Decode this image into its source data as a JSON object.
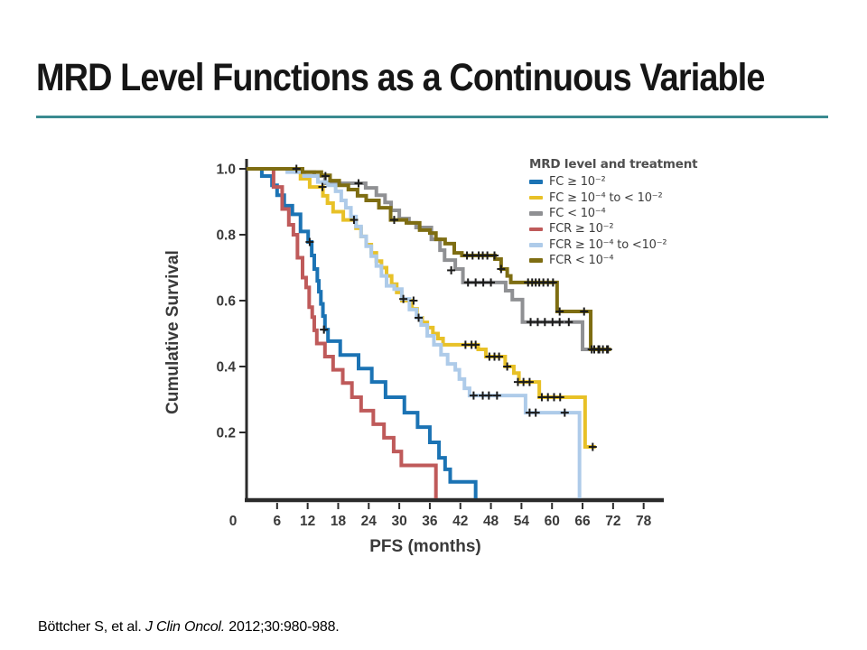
{
  "slide": {
    "title": "MRD Level Functions as a Continuous Variable",
    "accent_color": "#3b8b90",
    "citation": {
      "pre": "Böttcher S, et al. ",
      "italic": "J Clin Oncol.",
      "post": " 2012;30:980-988."
    }
  },
  "chart_data": {
    "type": "line",
    "subtype": "kaplan-meier-step",
    "title": "",
    "xlabel": "PFS (months)",
    "ylabel": "Cumulative Survival",
    "xlim": [
      0,
      80
    ],
    "ylim": [
      0,
      1.0
    ],
    "xticks": [
      0,
      6,
      12,
      18,
      24,
      30,
      36,
      42,
      48,
      54,
      60,
      66,
      72,
      78
    ],
    "yticks": [
      0.2,
      0.4,
      0.6,
      0.8,
      1.0
    ],
    "grid": false,
    "axis_color": "#2b2b2b",
    "censor_color": "#1b1b1b",
    "legend": {
      "title": "MRD level and treatment",
      "position": "top-right"
    },
    "series": [
      {
        "label": "FC ≥ 10⁻²",
        "color": "#1b73b4",
        "steps": [
          [
            3,
            0.978
          ],
          [
            5,
            0.95
          ],
          [
            6,
            0.92
          ],
          [
            7.4,
            0.888
          ],
          [
            9,
            0.862
          ],
          [
            10.6,
            0.81
          ],
          [
            12.1,
            0.778
          ],
          [
            12.8,
            0.737
          ],
          [
            13.3,
            0.696
          ],
          [
            13.9,
            0.66
          ],
          [
            14.2,
            0.627
          ],
          [
            14.6,
            0.59
          ],
          [
            15,
            0.553
          ],
          [
            15.4,
            0.512
          ],
          [
            16,
            0.477
          ],
          [
            18.4,
            0.435
          ],
          [
            22,
            0.394
          ],
          [
            24.6,
            0.353
          ],
          [
            27.3,
            0.307
          ],
          [
            31,
            0.26
          ],
          [
            33.6,
            0.216
          ],
          [
            36,
            0.17
          ],
          [
            37.8,
            0.123
          ],
          [
            39,
            0.088
          ],
          [
            40,
            0.05
          ],
          [
            45,
            0
          ]
        ],
        "end": 45,
        "censors": [
          [
            12.4,
            0.778
          ],
          [
            15.2,
            0.512
          ]
        ]
      },
      {
        "label": "FC ≥ 10⁻⁴ to < 10⁻²",
        "color": "#e8c127",
        "steps": [
          [
            10.6,
            0.97
          ],
          [
            12.4,
            0.945
          ],
          [
            15,
            0.918
          ],
          [
            15.9,
            0.896
          ],
          [
            17,
            0.87
          ],
          [
            19,
            0.845
          ],
          [
            21.5,
            0.82
          ],
          [
            22.5,
            0.795
          ],
          [
            23.5,
            0.77
          ],
          [
            24.5,
            0.745
          ],
          [
            25.5,
            0.72
          ],
          [
            26.5,
            0.7
          ],
          [
            27.5,
            0.675
          ],
          [
            28.5,
            0.65
          ],
          [
            29.5,
            0.625
          ],
          [
            30.5,
            0.6
          ],
          [
            32.5,
            0.575
          ],
          [
            33.5,
            0.548
          ],
          [
            34.5,
            0.534
          ],
          [
            35.5,
            0.518
          ],
          [
            36.6,
            0.5
          ],
          [
            37.6,
            0.485
          ],
          [
            38.6,
            0.466
          ],
          [
            45.5,
            0.452
          ],
          [
            47,
            0.43
          ],
          [
            50.8,
            0.4
          ],
          [
            52.5,
            0.38
          ],
          [
            53.5,
            0.353
          ],
          [
            57.5,
            0.307
          ],
          [
            66.5,
            0.156
          ]
        ],
        "end": 68.6,
        "censors": [
          [
            14.9,
            0.945
          ],
          [
            21.1,
            0.845
          ],
          [
            32.8,
            0.6
          ],
          [
            43,
            0.466
          ],
          [
            44.2,
            0.466
          ],
          [
            45,
            0.466
          ],
          [
            47.7,
            0.43
          ],
          [
            48.7,
            0.43
          ],
          [
            49.6,
            0.43
          ],
          [
            51.2,
            0.4
          ],
          [
            53.3,
            0.353
          ],
          [
            54.4,
            0.353
          ],
          [
            55.6,
            0.353
          ],
          [
            58,
            0.307
          ],
          [
            59.2,
            0.307
          ],
          [
            60.4,
            0.307
          ],
          [
            61.6,
            0.307
          ],
          [
            68,
            0.156
          ]
        ]
      },
      {
        "label": "FC < 10⁻⁴",
        "color": "#8f9093",
        "steps": [
          [
            9.7,
            0.99
          ],
          [
            13.3,
            0.978
          ],
          [
            15.4,
            0.956
          ],
          [
            23.4,
            0.942
          ],
          [
            25.5,
            0.92
          ],
          [
            27.2,
            0.898
          ],
          [
            28.4,
            0.874
          ],
          [
            30,
            0.849
          ],
          [
            31.9,
            0.836
          ],
          [
            33.3,
            0.822
          ],
          [
            36.3,
            0.786
          ],
          [
            38,
            0.753
          ],
          [
            38.9,
            0.723
          ],
          [
            41,
            0.696
          ],
          [
            42.5,
            0.655
          ],
          [
            50.9,
            0.63
          ],
          [
            52.2,
            0.603
          ],
          [
            54.2,
            0.535
          ],
          [
            66,
            0.452
          ]
        ],
        "end": 71.6,
        "censors": [
          [
            9.8,
            1.0
          ],
          [
            22,
            0.956
          ],
          [
            40.2,
            0.692
          ],
          [
            43.5,
            0.655
          ],
          [
            45,
            0.655
          ],
          [
            46.5,
            0.655
          ],
          [
            48,
            0.655
          ],
          [
            55.8,
            0.535
          ],
          [
            57.2,
            0.535
          ],
          [
            58.6,
            0.535
          ],
          [
            60.1,
            0.535
          ],
          [
            61.5,
            0.535
          ],
          [
            63.3,
            0.535
          ],
          [
            67.8,
            0.452
          ],
          [
            69.3,
            0.452
          ],
          [
            70.8,
            0.452
          ]
        ]
      },
      {
        "label": "FCR ≥ 10⁻²",
        "color": "#bf5a5a",
        "steps": [
          [
            5.3,
            0.945
          ],
          [
            7,
            0.878
          ],
          [
            8.3,
            0.83
          ],
          [
            9.2,
            0.8
          ],
          [
            10,
            0.73
          ],
          [
            11,
            0.67
          ],
          [
            11.7,
            0.64
          ],
          [
            12.3,
            0.58
          ],
          [
            12.9,
            0.55
          ],
          [
            13.3,
            0.51
          ],
          [
            13.8,
            0.47
          ],
          [
            15.4,
            0.43
          ],
          [
            17,
            0.39
          ],
          [
            18.9,
            0.35
          ],
          [
            20.7,
            0.307
          ],
          [
            22.5,
            0.266
          ],
          [
            24.9,
            0.225
          ],
          [
            27,
            0.184
          ],
          [
            28.9,
            0.142
          ],
          [
            30.4,
            0.1
          ],
          [
            37.2,
            0
          ]
        ],
        "end": 37.2,
        "censors": []
      },
      {
        "label": "FCR ≥ 10⁻⁴ to <10⁻²",
        "color": "#aecbe9",
        "steps": [
          [
            8,
            0.99
          ],
          [
            11.3,
            0.978
          ],
          [
            14,
            0.96
          ],
          [
            16,
            0.95
          ],
          [
            17.5,
            0.932
          ],
          [
            18.6,
            0.904
          ],
          [
            19.5,
            0.882
          ],
          [
            20.5,
            0.855
          ],
          [
            21.5,
            0.825
          ],
          [
            22.5,
            0.795
          ],
          [
            23.5,
            0.765
          ],
          [
            24.5,
            0.735
          ],
          [
            25.5,
            0.705
          ],
          [
            26.5,
            0.675
          ],
          [
            27.5,
            0.645
          ],
          [
            29,
            0.635
          ],
          [
            30.5,
            0.605
          ],
          [
            32,
            0.573
          ],
          [
            33.4,
            0.548
          ],
          [
            34.3,
            0.526
          ],
          [
            35.5,
            0.493
          ],
          [
            36.8,
            0.466
          ],
          [
            38.2,
            0.436
          ],
          [
            39.5,
            0.408
          ],
          [
            41,
            0.39
          ],
          [
            41.8,
            0.362
          ],
          [
            42.8,
            0.334
          ],
          [
            43.8,
            0.312
          ],
          [
            54.8,
            0.26
          ],
          [
            65.4,
            0
          ]
        ],
        "end": 65.4,
        "censors": [
          [
            15.5,
            0.978
          ],
          [
            30.8,
            0.605
          ],
          [
            33.8,
            0.548
          ],
          [
            44.6,
            0.312
          ],
          [
            46.4,
            0.312
          ],
          [
            47.6,
            0.312
          ],
          [
            49.2,
            0.312
          ],
          [
            55.6,
            0.26
          ],
          [
            56.8,
            0.26
          ],
          [
            62.5,
            0.26
          ]
        ]
      },
      {
        "label": "FCR < 10⁻⁴",
        "color": "#7e6d12",
        "steps": [
          [
            11,
            0.99
          ],
          [
            14.7,
            0.98
          ],
          [
            16.4,
            0.964
          ],
          [
            18.2,
            0.95
          ],
          [
            20,
            0.937
          ],
          [
            21.8,
            0.918
          ],
          [
            23.5,
            0.904
          ],
          [
            26,
            0.882
          ],
          [
            28.3,
            0.845
          ],
          [
            31.4,
            0.836
          ],
          [
            34,
            0.814
          ],
          [
            36,
            0.805
          ],
          [
            37.2,
            0.786
          ],
          [
            39,
            0.773
          ],
          [
            40.8,
            0.745
          ],
          [
            42.3,
            0.737
          ],
          [
            48.8,
            0.726
          ],
          [
            50,
            0.696
          ],
          [
            51.2,
            0.675
          ],
          [
            51.9,
            0.655
          ],
          [
            61,
            0.567
          ],
          [
            67.6,
            0.452
          ]
        ],
        "end": 71.6,
        "censors": [
          [
            29,
            0.845
          ],
          [
            43.3,
            0.737
          ],
          [
            44.4,
            0.737
          ],
          [
            45.6,
            0.737
          ],
          [
            46.4,
            0.737
          ],
          [
            47.3,
            0.737
          ],
          [
            48.7,
            0.737
          ],
          [
            50,
            0.696
          ],
          [
            55.3,
            0.655
          ],
          [
            56.1,
            0.655
          ],
          [
            56.8,
            0.655
          ],
          [
            57.5,
            0.655
          ],
          [
            58.3,
            0.655
          ],
          [
            59.2,
            0.655
          ],
          [
            60.2,
            0.655
          ],
          [
            61.5,
            0.567
          ],
          [
            66.3,
            0.567
          ],
          [
            68.3,
            0.452
          ],
          [
            69.1,
            0.452
          ],
          [
            70,
            0.452
          ],
          [
            71,
            0.452
          ]
        ]
      }
    ]
  }
}
